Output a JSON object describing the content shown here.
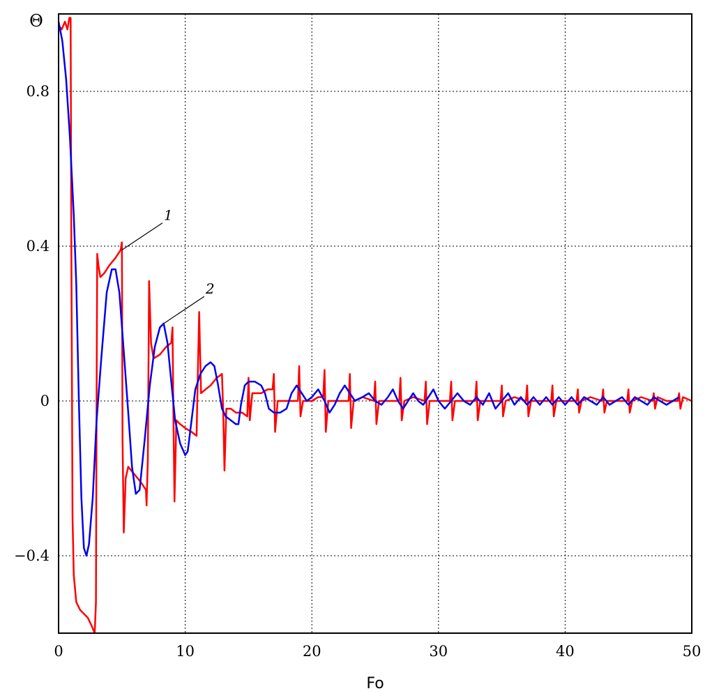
{
  "chart_data": {
    "type": "line",
    "title": "",
    "xlabel": "Fo",
    "ylabel": "Θ",
    "xlim": [
      0,
      50
    ],
    "ylim": [
      -0.6,
      1.0
    ],
    "grid": true,
    "x_ticks": [
      {
        "value": 0,
        "label": "0"
      },
      {
        "value": 10,
        "label": "10"
      },
      {
        "value": 20,
        "label": "20"
      },
      {
        "value": 30,
        "label": "30"
      },
      {
        "value": 40,
        "label": "40"
      },
      {
        "value": 50,
        "label": "50"
      }
    ],
    "y_ticks": [
      {
        "value": 0.8,
        "label": "0.8"
      },
      {
        "value": 0.4,
        "label": "0.4"
      },
      {
        "value": 0,
        "label": "0"
      },
      {
        "value": -0.4,
        "label": "−0.4"
      }
    ],
    "series": [
      {
        "name": "",
        "color": "#ff0000",
        "points": [
          [
            0,
            0.97
          ],
          [
            0.25,
            0.96
          ],
          [
            0.5,
            0.98
          ],
          [
            0.7,
            0.96
          ],
          [
            0.85,
            0.99
          ],
          [
            0.95,
            0.99
          ],
          [
            1.0,
            0.45
          ],
          [
            1.1,
            -0.3
          ],
          [
            1.2,
            -0.45
          ],
          [
            1.4,
            -0.52
          ],
          [
            1.7,
            -0.54
          ],
          [
            2.0,
            -0.55
          ],
          [
            2.3,
            -0.56
          ],
          [
            2.6,
            -0.58
          ],
          [
            2.85,
            -0.6
          ],
          [
            2.95,
            -0.52
          ],
          [
            3.0,
            0.0
          ],
          [
            3.05,
            0.38
          ],
          [
            3.15,
            0.35
          ],
          [
            3.3,
            0.32
          ],
          [
            3.6,
            0.33
          ],
          [
            4.0,
            0.35
          ],
          [
            4.5,
            0.37
          ],
          [
            4.9,
            0.39
          ],
          [
            5.0,
            0.41
          ],
          [
            5.05,
            -0.1
          ],
          [
            5.15,
            -0.34
          ],
          [
            5.3,
            -0.2
          ],
          [
            5.5,
            -0.17
          ],
          [
            6.0,
            -0.19
          ],
          [
            6.5,
            -0.21
          ],
          [
            6.9,
            -0.23
          ],
          [
            6.95,
            -0.27
          ],
          [
            7.05,
            -0.15
          ],
          [
            7.15,
            0.31
          ],
          [
            7.3,
            0.15
          ],
          [
            7.5,
            0.11
          ],
          [
            8.0,
            0.12
          ],
          [
            8.5,
            0.14
          ],
          [
            8.9,
            0.15
          ],
          [
            9.0,
            0.19
          ],
          [
            9.05,
            0.02
          ],
          [
            9.15,
            -0.26
          ],
          [
            9.3,
            -0.05
          ],
          [
            9.6,
            -0.06
          ],
          [
            10.0,
            -0.07
          ],
          [
            10.5,
            -0.08
          ],
          [
            10.9,
            -0.09
          ],
          [
            11.0,
            0.08
          ],
          [
            11.1,
            0.23
          ],
          [
            11.25,
            0.02
          ],
          [
            11.6,
            0.03
          ],
          [
            12.0,
            0.04
          ],
          [
            12.5,
            0.06
          ],
          [
            12.9,
            0.07
          ],
          [
            13.0,
            -0.03
          ],
          [
            13.1,
            -0.18
          ],
          [
            13.25,
            -0.02
          ],
          [
            13.6,
            -0.02
          ],
          [
            14.0,
            -0.03
          ],
          [
            14.5,
            -0.03
          ],
          [
            14.9,
            -0.04
          ],
          [
            15.0,
            0.06
          ],
          [
            15.1,
            -0.05
          ],
          [
            15.3,
            0.02
          ],
          [
            16.0,
            0.02
          ],
          [
            16.5,
            0.03
          ],
          [
            16.9,
            0.03
          ],
          [
            17.0,
            0.07
          ],
          [
            17.1,
            -0.08
          ],
          [
            17.3,
            0.0
          ],
          [
            18.0,
            0.0
          ],
          [
            18.5,
            0.0
          ],
          [
            18.9,
            0.0
          ],
          [
            19.0,
            0.09
          ],
          [
            19.1,
            -0.04
          ],
          [
            19.3,
            0.0
          ],
          [
            20.0,
            0.0
          ],
          [
            20.5,
            0.01
          ],
          [
            20.9,
            0.01
          ],
          [
            21.0,
            0.08
          ],
          [
            21.1,
            -0.08
          ],
          [
            21.3,
            0.0
          ],
          [
            22.0,
            0.0
          ],
          [
            22.9,
            0.0
          ],
          [
            23.0,
            0.07
          ],
          [
            23.1,
            -0.07
          ],
          [
            23.3,
            0.0
          ],
          [
            24.0,
            0.01
          ],
          [
            24.9,
            0.0
          ],
          [
            25.0,
            0.05
          ],
          [
            25.1,
            -0.06
          ],
          [
            25.3,
            0.0
          ],
          [
            26.0,
            0.0
          ],
          [
            26.9,
            0.0
          ],
          [
            27.0,
            0.06
          ],
          [
            27.1,
            -0.05
          ],
          [
            27.3,
            0.0
          ],
          [
            28.0,
            0.01
          ],
          [
            28.9,
            0.0
          ],
          [
            29.0,
            0.05
          ],
          [
            29.1,
            -0.06
          ],
          [
            29.3,
            0.0
          ],
          [
            30.0,
            0.0
          ],
          [
            30.9,
            0.0
          ],
          [
            31.0,
            0.05
          ],
          [
            31.1,
            -0.05
          ],
          [
            31.3,
            0.0
          ],
          [
            32.0,
            0.0
          ],
          [
            32.9,
            0.0
          ],
          [
            33.0,
            0.05
          ],
          [
            33.1,
            -0.05
          ],
          [
            33.3,
            0.0
          ],
          [
            34.0,
            0.0
          ],
          [
            34.9,
            0.0
          ],
          [
            35.0,
            0.04
          ],
          [
            35.1,
            -0.04
          ],
          [
            35.3,
            0.0
          ],
          [
            36.0,
            0.01
          ],
          [
            36.9,
            0.0
          ],
          [
            37.0,
            0.04
          ],
          [
            37.1,
            -0.04
          ],
          [
            37.3,
            0.0
          ],
          [
            38.0,
            0.0
          ],
          [
            38.9,
            0.0
          ],
          [
            39.0,
            0.04
          ],
          [
            39.1,
            -0.04
          ],
          [
            39.3,
            0.0
          ],
          [
            40.0,
            0.0
          ],
          [
            40.9,
            0.0
          ],
          [
            41.0,
            0.03
          ],
          [
            41.1,
            -0.03
          ],
          [
            41.3,
            0.0
          ],
          [
            42.0,
            0.01
          ],
          [
            42.9,
            0.0
          ],
          [
            43.0,
            0.03
          ],
          [
            43.1,
            -0.03
          ],
          [
            43.3,
            0.0
          ],
          [
            44.0,
            0.0
          ],
          [
            44.9,
            0.0
          ],
          [
            45.0,
            0.03
          ],
          [
            45.1,
            -0.03
          ],
          [
            45.3,
            0.0
          ],
          [
            46.0,
            0.01
          ],
          [
            46.9,
            0.0
          ],
          [
            47.0,
            0.02
          ],
          [
            47.1,
            -0.02
          ],
          [
            47.3,
            0.01
          ],
          [
            48.0,
            0.0
          ],
          [
            48.9,
            0.0
          ],
          [
            49.0,
            0.02
          ],
          [
            49.1,
            -0.02
          ],
          [
            49.3,
            0.01
          ],
          [
            50.0,
            0.0
          ]
        ]
      },
      {
        "name": "",
        "color": "#0000ee",
        "points": [
          [
            0,
            0.98
          ],
          [
            0.3,
            0.93
          ],
          [
            0.6,
            0.83
          ],
          [
            0.9,
            0.68
          ],
          [
            1.2,
            0.48
          ],
          [
            1.4,
            0.3
          ],
          [
            1.6,
            0.0
          ],
          [
            1.8,
            -0.25
          ],
          [
            2.0,
            -0.38
          ],
          [
            2.2,
            -0.4
          ],
          [
            2.4,
            -0.37
          ],
          [
            2.7,
            -0.25
          ],
          [
            3.0,
            -0.05
          ],
          [
            3.4,
            0.12
          ],
          [
            3.8,
            0.28
          ],
          [
            4.2,
            0.34
          ],
          [
            4.5,
            0.34
          ],
          [
            4.8,
            0.28
          ],
          [
            5.1,
            0.15
          ],
          [
            5.5,
            -0.03
          ],
          [
            5.8,
            -0.17
          ],
          [
            6.1,
            -0.24
          ],
          [
            6.4,
            -0.23
          ],
          [
            6.8,
            -0.1
          ],
          [
            7.2,
            0.04
          ],
          [
            7.6,
            0.14
          ],
          [
            8.0,
            0.19
          ],
          [
            8.3,
            0.2
          ],
          [
            8.6,
            0.15
          ],
          [
            8.9,
            0.05
          ],
          [
            9.2,
            -0.05
          ],
          [
            9.6,
            -0.11
          ],
          [
            10.0,
            -0.14
          ],
          [
            10.2,
            -0.13
          ],
          [
            10.5,
            -0.05
          ],
          [
            10.8,
            0.03
          ],
          [
            11.2,
            0.07
          ],
          [
            11.6,
            0.09
          ],
          [
            12.0,
            0.1
          ],
          [
            12.3,
            0.09
          ],
          [
            12.6,
            0.04
          ],
          [
            12.9,
            -0.02
          ],
          [
            13.2,
            -0.04
          ],
          [
            13.6,
            -0.05
          ],
          [
            14.0,
            -0.06
          ],
          [
            14.2,
            -0.06
          ],
          [
            14.4,
            -0.01
          ],
          [
            14.7,
            0.04
          ],
          [
            15.0,
            0.05
          ],
          [
            15.5,
            0.05
          ],
          [
            16.0,
            0.04
          ],
          [
            16.3,
            0.02
          ],
          [
            16.6,
            -0.02
          ],
          [
            17.0,
            -0.03
          ],
          [
            17.5,
            -0.03
          ],
          [
            18.0,
            -0.02
          ],
          [
            18.4,
            0.02
          ],
          [
            18.8,
            0.04
          ],
          [
            19.2,
            0.02
          ],
          [
            19.6,
            0.0
          ],
          [
            20.0,
            0.01
          ],
          [
            20.5,
            0.03
          ],
          [
            21.0,
            0.0
          ],
          [
            21.4,
            -0.03
          ],
          [
            21.8,
            -0.01
          ],
          [
            22.2,
            0.02
          ],
          [
            22.6,
            0.04
          ],
          [
            23.0,
            0.02
          ],
          [
            23.4,
            0.0
          ],
          [
            24.0,
            0.01
          ],
          [
            24.5,
            0.02
          ],
          [
            25.0,
            0.0
          ],
          [
            25.5,
            -0.01
          ],
          [
            26.0,
            0.01
          ],
          [
            26.4,
            0.03
          ],
          [
            26.8,
            0.0
          ],
          [
            27.2,
            -0.02
          ],
          [
            27.6,
            0.0
          ],
          [
            28.0,
            0.02
          ],
          [
            28.4,
            0.0
          ],
          [
            28.8,
            -0.01
          ],
          [
            29.2,
            0.01
          ],
          [
            29.6,
            0.03
          ],
          [
            30.0,
            0.0
          ],
          [
            30.5,
            -0.02
          ],
          [
            31.0,
            0.0
          ],
          [
            31.5,
            0.02
          ],
          [
            32.0,
            0.0
          ],
          [
            32.5,
            -0.01
          ],
          [
            33.0,
            0.01
          ],
          [
            33.5,
            -0.01
          ],
          [
            34.0,
            0.02
          ],
          [
            34.5,
            -0.02
          ],
          [
            35.0,
            0.0
          ],
          [
            35.5,
            0.02
          ],
          [
            36.0,
            -0.01
          ],
          [
            36.5,
            0.01
          ],
          [
            37.0,
            -0.01
          ],
          [
            37.5,
            0.01
          ],
          [
            38.0,
            -0.01
          ],
          [
            38.5,
            0.01
          ],
          [
            39.0,
            -0.01
          ],
          [
            39.5,
            0.01
          ],
          [
            40.0,
            -0.01
          ],
          [
            40.5,
            0.01
          ],
          [
            41.0,
            -0.01
          ],
          [
            41.5,
            0.01
          ],
          [
            42.0,
            0.0
          ],
          [
            42.5,
            -0.01
          ],
          [
            43.0,
            0.01
          ],
          [
            43.5,
            -0.01
          ],
          [
            44.0,
            0.0
          ],
          [
            44.5,
            0.01
          ],
          [
            45.0,
            -0.01
          ],
          [
            45.5,
            0.01
          ],
          [
            46.0,
            0.0
          ],
          [
            46.5,
            -0.01
          ],
          [
            47.0,
            0.01
          ],
          [
            47.5,
            0.0
          ],
          [
            48.0,
            -0.01
          ],
          [
            48.5,
            0.0
          ],
          [
            49.0,
            0.01
          ]
        ]
      }
    ],
    "annotations": [
      {
        "text": "1",
        "target": [
          5.0,
          0.39
        ],
        "label_at": [
          8.2,
          0.46
        ]
      },
      {
        "text": "2",
        "target": [
          8.3,
          0.2
        ],
        "label_at": [
          11.5,
          0.27
        ]
      }
    ]
  }
}
